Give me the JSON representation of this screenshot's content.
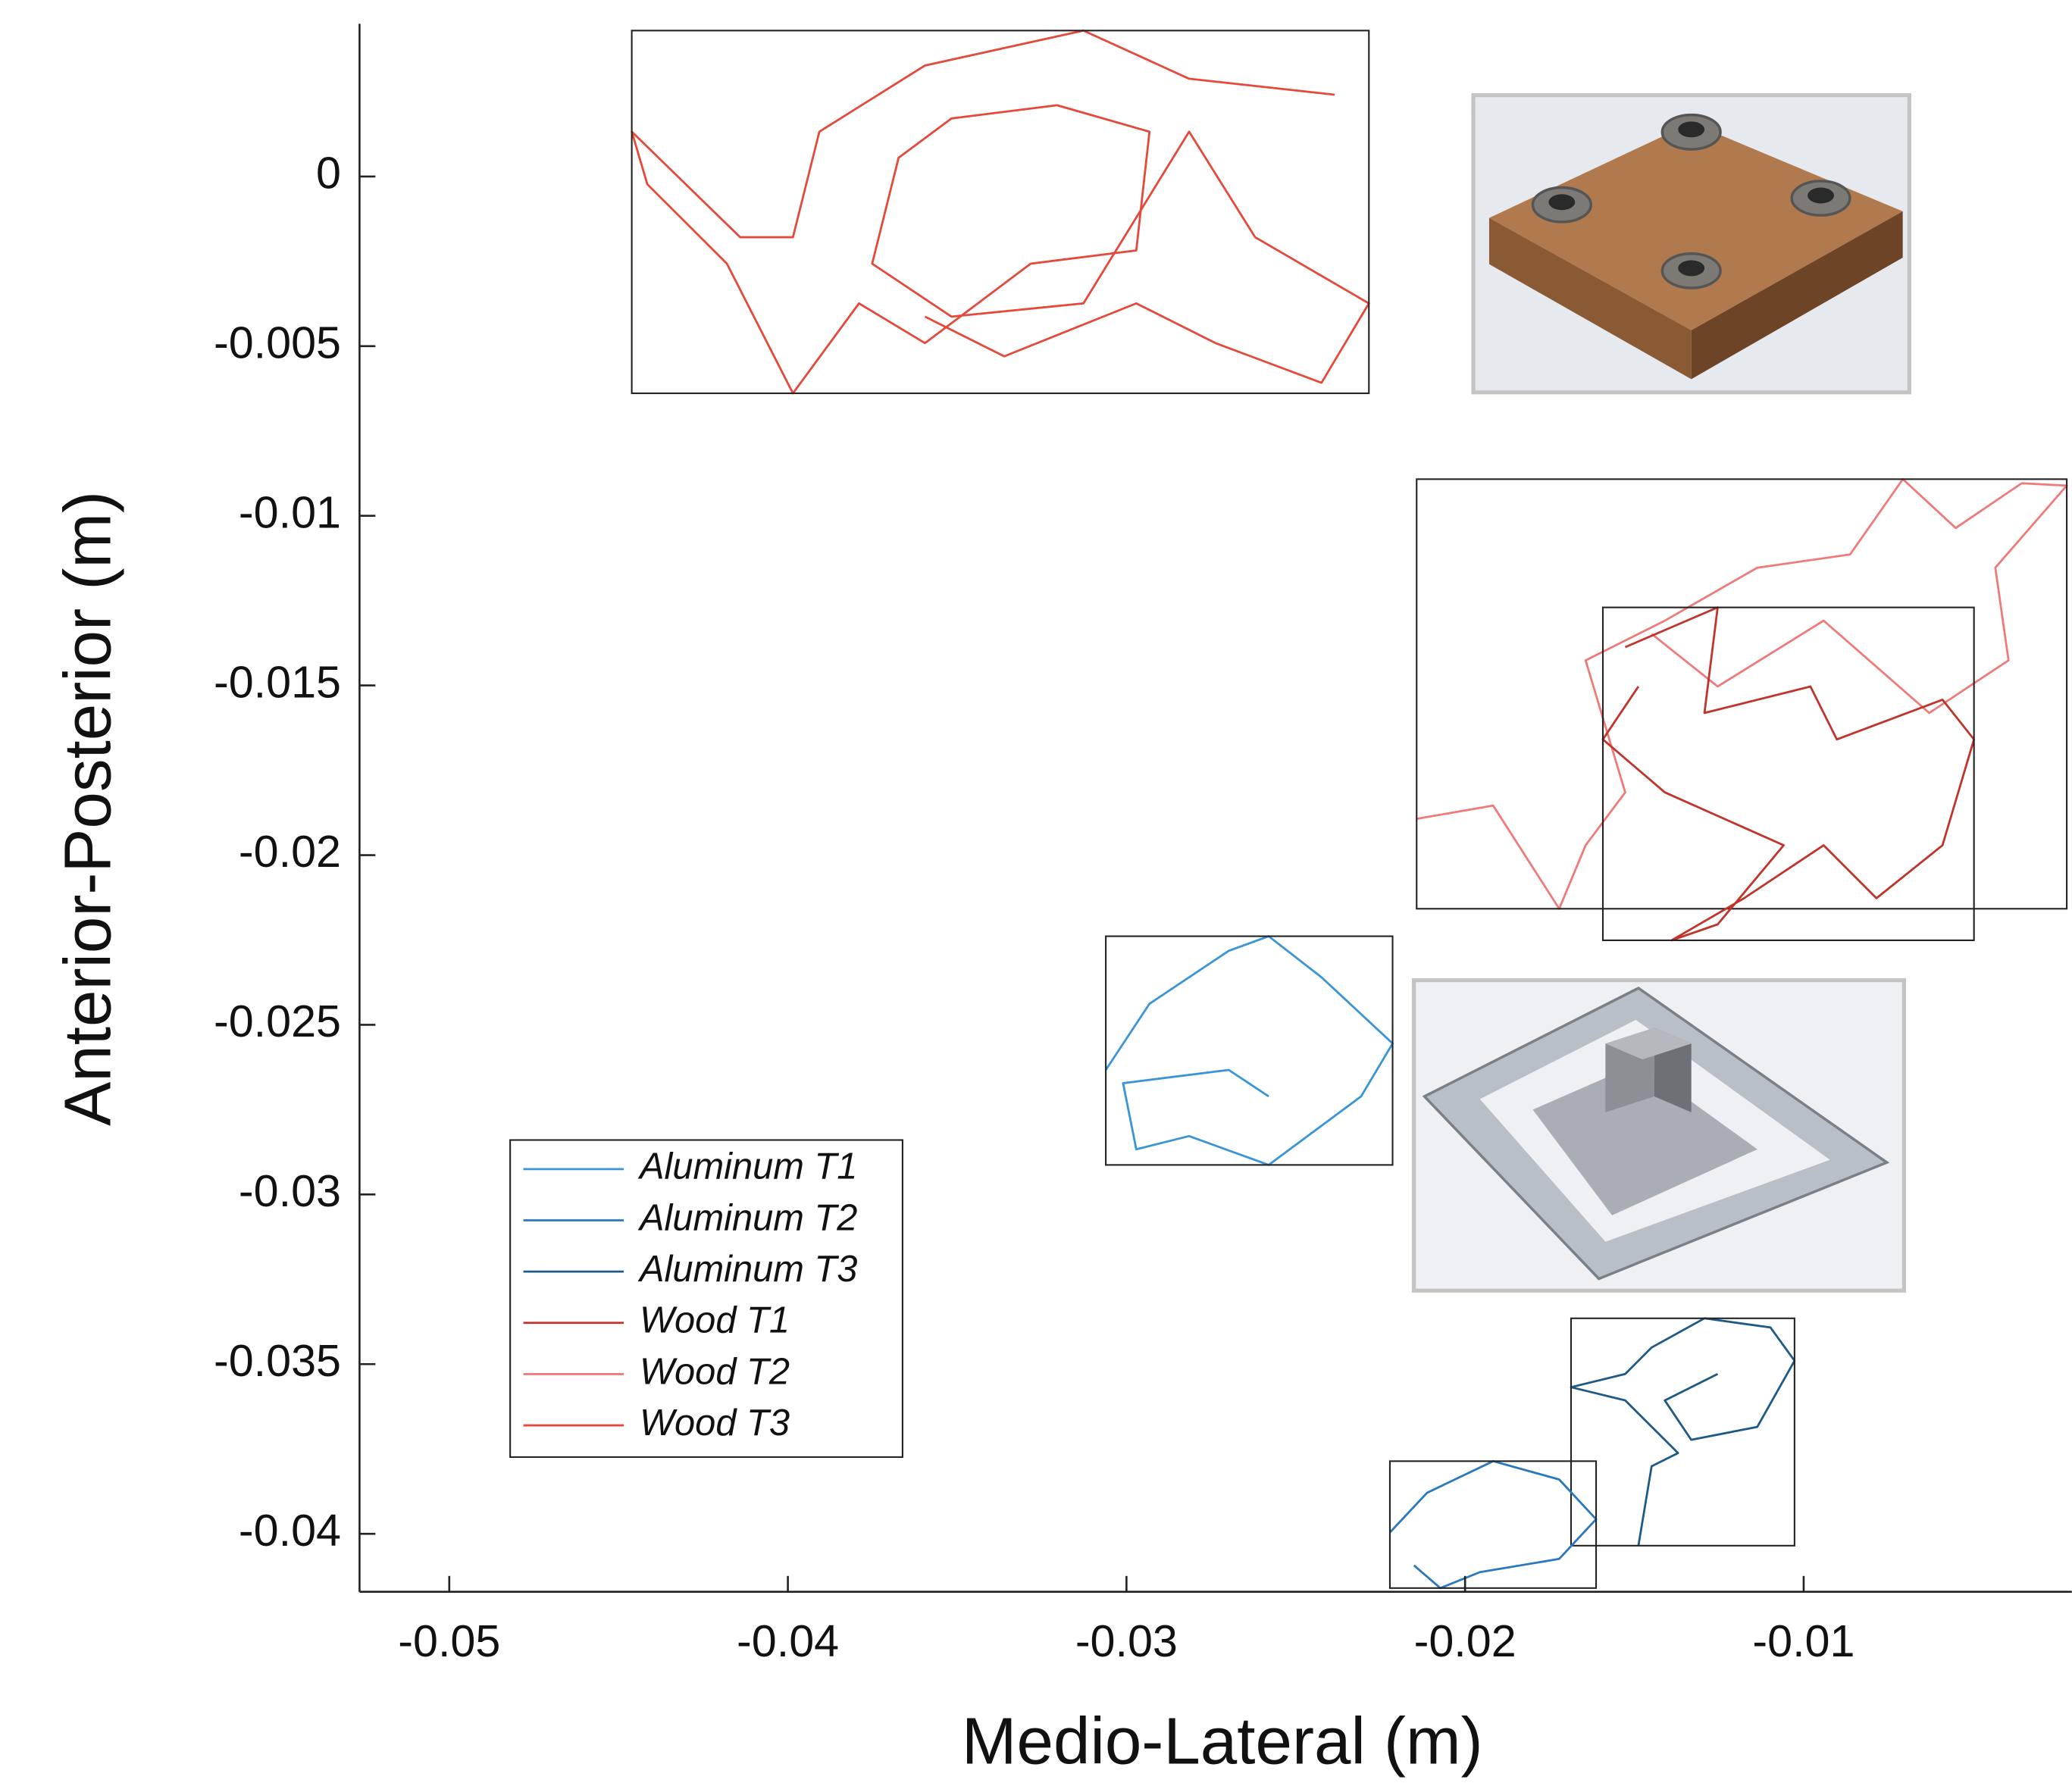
{
  "chart_data": {
    "type": "line",
    "xlabel": "Medio-Lateral (m)",
    "ylabel": "Anterior-Posterior (m)",
    "xlim": [
      -0.05265,
      -0.00208
    ],
    "ylim": [
      -0.04171,
      0.0045
    ],
    "xticks": [
      -0.05,
      -0.04,
      -0.03,
      -0.02,
      -0.01
    ],
    "yticks": [
      0,
      -0.005,
      -0.01,
      -0.015,
      -0.02,
      -0.025,
      -0.03,
      -0.035,
      -0.04
    ],
    "legend": "lower left",
    "series": [
      {
        "name": "Aluminum T1",
        "color": "#3a95d8",
        "x": [
          -0.03061,
          -0.02932,
          -0.02698,
          -0.0258,
          -0.02424,
          -0.02214,
          -0.02307,
          -0.0258,
          -0.02815,
          -0.02971,
          -0.0301,
          -0.02698,
          -0.0258
        ],
        "values": [
          -0.02633,
          -0.02438,
          -0.02282,
          -0.02239,
          -0.0236,
          -0.02555,
          -0.02711,
          -0.02913,
          -0.02828,
          -0.02867,
          -0.02672,
          -0.02633,
          -0.02711
        ]
      },
      {
        "name": "Aluminum T2",
        "color": "#2a78bd",
        "x": [
          -0.02222,
          -0.02112,
          -0.01917,
          -0.01722,
          -0.01613,
          -0.01722,
          -0.01956,
          -0.02073,
          -0.02151
        ],
        "values": [
          -0.03996,
          -0.03879,
          -0.03786,
          -0.0384,
          -0.03957,
          -0.04074,
          -0.04113,
          -0.0416,
          -0.04093
        ]
      },
      {
        "name": "Aluminum T3",
        "color": "#1f5a86",
        "x": [
          -0.01488,
          -0.01449,
          -0.01371,
          -0.01527,
          -0.01687,
          -0.01527,
          -0.01449,
          -0.01293,
          -0.01098,
          -0.01027,
          -0.01137,
          -0.01332,
          -0.0141,
          -0.01254
        ],
        "values": [
          -0.04035,
          -0.03801,
          -0.03762,
          -0.03607,
          -0.03568,
          -0.03529,
          -0.03451,
          -0.03365,
          -0.03392,
          -0.0349,
          -0.03685,
          -0.03723,
          -0.03607,
          -0.03529
        ]
      },
      {
        "name": "Wood T1",
        "color": "#c0342c",
        "x": [
          -0.01527,
          -0.01254,
          -0.01293,
          -0.0098,
          -0.00902,
          -0.0059,
          -0.00497,
          -0.0059,
          -0.00785,
          -0.00941,
          -0.01176,
          -0.0139,
          -0.01254,
          -0.01059,
          -0.0141,
          -0.01593,
          -0.01488
        ],
        "values": [
          -0.01387,
          -0.0127,
          -0.01581,
          -0.01503,
          -0.01659,
          -0.01542,
          -0.01659,
          -0.01971,
          -0.02127,
          -0.01971,
          -0.02127,
          -0.02251,
          -0.02204,
          -0.01971,
          -0.01815,
          -0.01659,
          -0.01503
        ]
      },
      {
        "name": "Wood T2",
        "color": "#f07a7a",
        "x": [
          -0.02143,
          -0.01917,
          -0.01722,
          -0.01644,
          -0.01527,
          -0.01644,
          -0.0141,
          -0.01137,
          -0.00863,
          -0.00707,
          -0.00551,
          -0.00356,
          -0.00223,
          -0.00434,
          -0.00395,
          -0.00629,
          -0.00941,
          -0.01254,
          -0.01449
        ],
        "values": [
          -0.01893,
          -0.01854,
          -0.02158,
          -0.01971,
          -0.01815,
          -0.01426,
          -0.01309,
          -0.01153,
          -0.01114,
          -0.00892,
          -0.01036,
          -0.00904,
          -0.00911,
          -0.01153,
          -0.01426,
          -0.01581,
          -0.01309,
          -0.01503,
          -0.01348
        ]
      },
      {
        "name": "Wood T3",
        "color": "#e5493b",
        "x": [
          -0.02385,
          -0.02815,
          -0.03127,
          -0.03595,
          -0.03907,
          -0.03985,
          -0.04141,
          -0.04461,
          -0.04415,
          -0.0418,
          -0.03985,
          -0.0379,
          -0.03595,
          -0.03283,
          -0.02971,
          -0.02932,
          -0.03205,
          -0.03517,
          -0.03673,
          -0.03751,
          -0.03517,
          -0.03127,
          -0.02815,
          -0.0262,
          -0.02284,
          -0.02424,
          -0.02737,
          -0.02971,
          -0.03361,
          -0.03595
        ],
        "values": [
          0.00241,
          0.00288,
          0.0043,
          0.00327,
          0.00132,
          -0.00179,
          -0.00179,
          0.00132,
          -0.00023,
          -0.00257,
          -0.00639,
          -0.00374,
          -0.00491,
          -0.00257,
          -0.00218,
          0.00132,
          0.0021,
          0.00171,
          0.00055,
          -0.00257,
          -0.00413,
          -0.00374,
          0.00132,
          -0.00179,
          -0.00374,
          -0.00608,
          -0.00491,
          -0.00374,
          -0.0053,
          -0.00413
        ]
      }
    ]
  }
}
